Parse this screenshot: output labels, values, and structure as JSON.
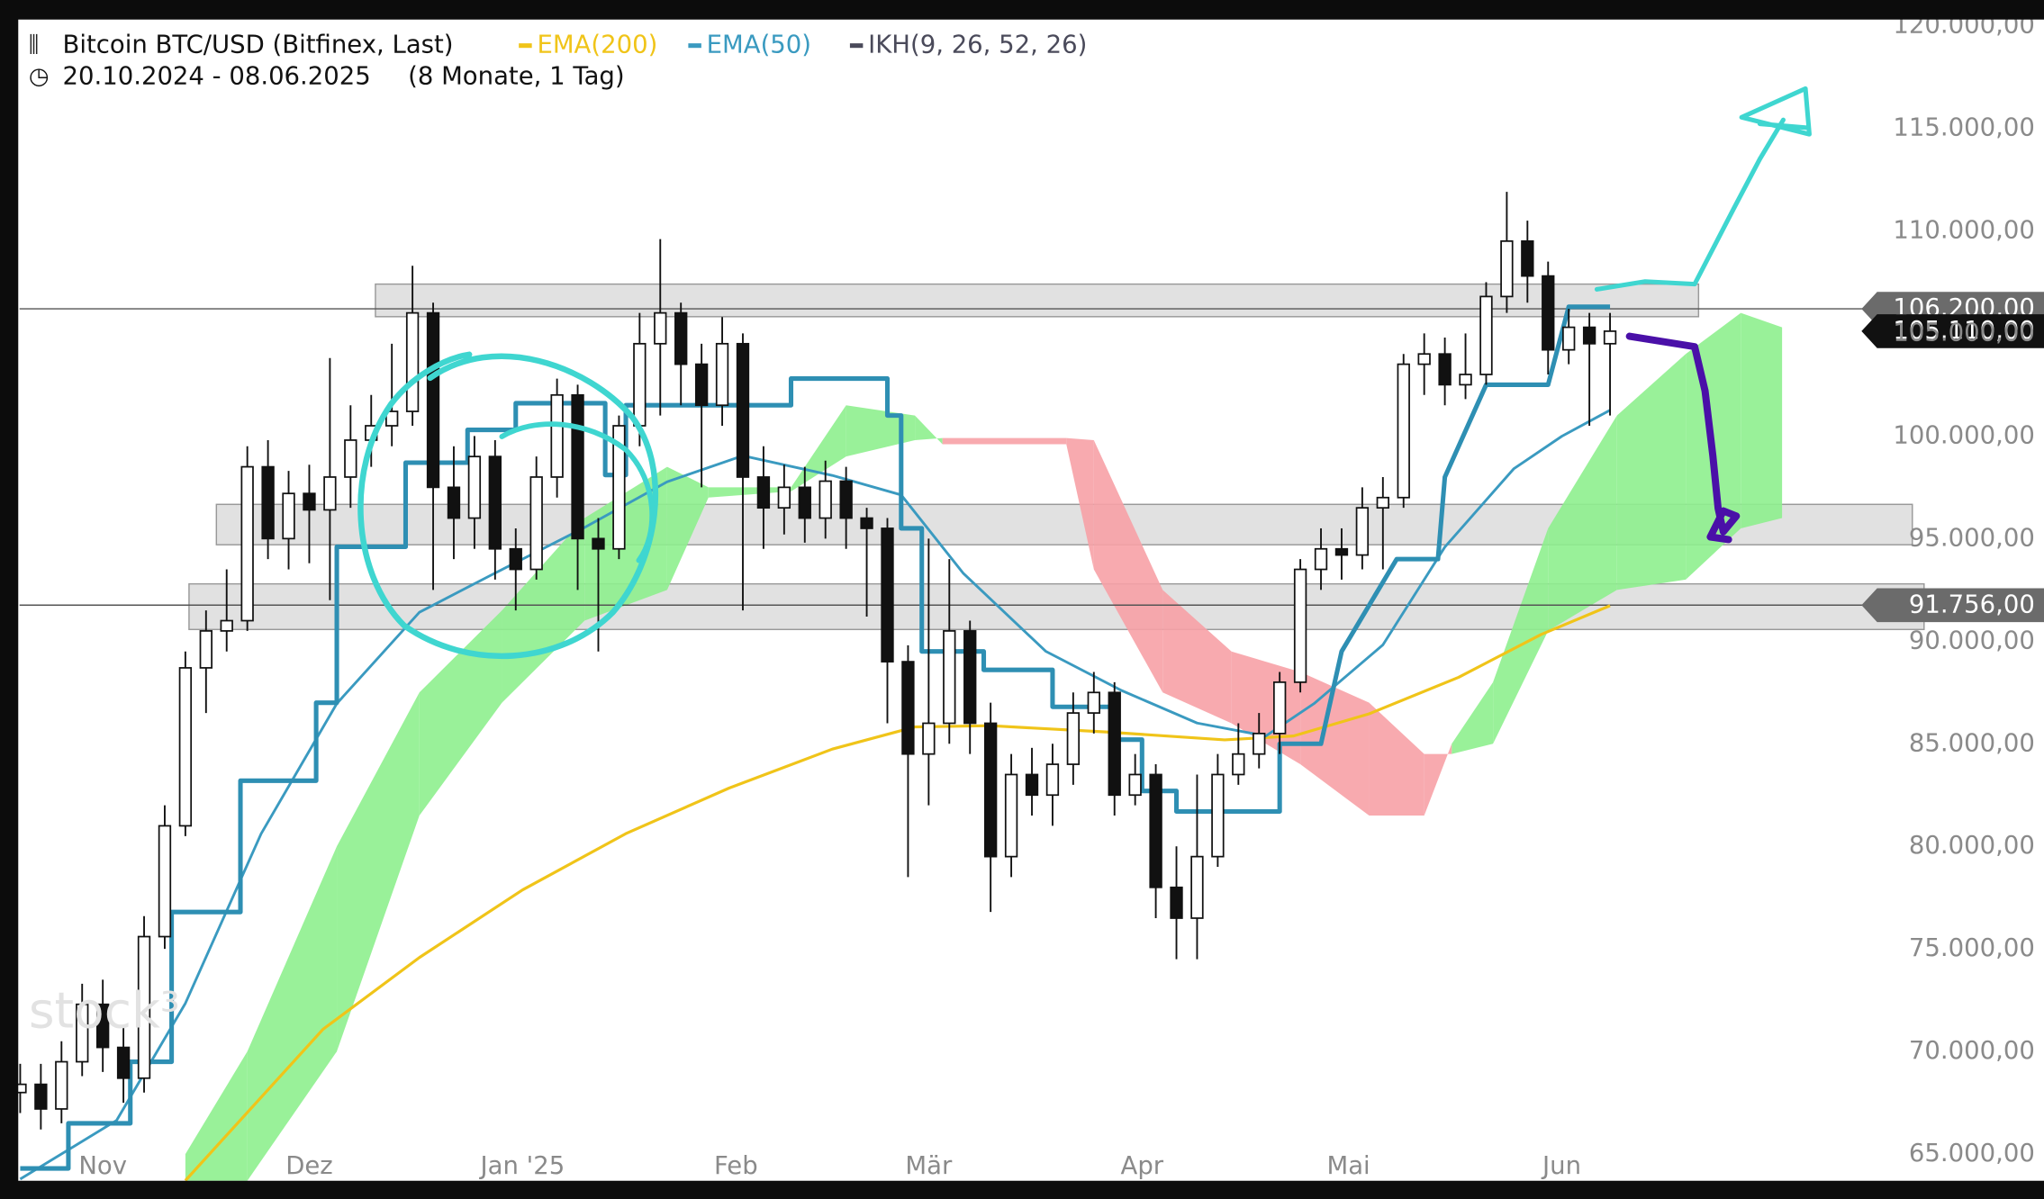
{
  "chart_data": {
    "type": "candlestick",
    "title": "Bitcoin BTC/USD (Bitfinex, Last)",
    "date_range": "20.10.2024 - 08.06.2025",
    "period": "(8 Monate, 1 Tag)",
    "watermark": "stock³",
    "xlim": [
      0,
      270
    ],
    "ylim": [
      63700,
      120300
    ],
    "xticks": [
      {
        "value": 12,
        "label": "Nov"
      },
      {
        "value": 42,
        "label": "Dez"
      },
      {
        "value": 73,
        "label": "Jan '25"
      },
      {
        "value": 104,
        "label": "Feb"
      },
      {
        "value": 132,
        "label": "Mär"
      },
      {
        "value": 163,
        "label": "Apr"
      },
      {
        "value": 193,
        "label": "Mai"
      },
      {
        "value": 224,
        "label": "Jun"
      }
    ],
    "yticks": [
      {
        "value": 65000,
        "label": "65.000,00"
      },
      {
        "value": 70000,
        "label": "70.000,00"
      },
      {
        "value": 75000,
        "label": "75.000,00"
      },
      {
        "value": 80000,
        "label": "80.000,00"
      },
      {
        "value": 85000,
        "label": "85.000,00"
      },
      {
        "value": 90000,
        "label": "90.000,00"
      },
      {
        "value": 95000,
        "label": "95.000,00"
      },
      {
        "value": 100000,
        "label": "100.000,00"
      },
      {
        "value": 105000,
        "label": "105.000,00"
      },
      {
        "value": 110000,
        "label": "110.000,00"
      },
      {
        "value": 115000,
        "label": "115.000,00"
      },
      {
        "value": 120000,
        "label": "120.000,00"
      }
    ],
    "price_levels": [
      {
        "value": 106200,
        "label": "106.200,00",
        "color": "#6b6b6b"
      },
      {
        "value": 91756,
        "label": "91.756,00",
        "color": "#6b6b6b"
      }
    ],
    "last_price": {
      "value": 105110,
      "label": "105.110,00",
      "color": "#111111"
    },
    "candles": {
      "up_color": "#ffffff",
      "down_color": "#111111",
      "x": [
        0,
        3,
        6,
        9,
        12,
        15,
        18,
        21,
        24,
        27,
        30,
        33,
        36,
        39,
        42,
        45,
        48,
        51,
        54,
        57,
        60,
        63,
        66,
        69,
        72,
        75,
        78,
        81,
        84,
        87,
        90,
        93,
        96,
        99,
        102,
        105,
        108,
        111,
        114,
        117,
        120,
        123,
        126,
        129,
        132,
        135,
        138,
        141,
        144,
        147,
        150,
        153,
        156,
        159,
        162,
        165,
        168,
        171,
        174,
        177,
        180,
        183,
        186,
        189,
        192,
        195,
        198,
        201,
        204,
        207,
        210,
        213,
        216,
        219,
        222,
        225,
        228,
        231
      ],
      "open": [
        68000,
        68400,
        67200,
        69500,
        72300,
        70200,
        68700,
        75600,
        81000,
        88700,
        90500,
        91000,
        98500,
        95000,
        97200,
        96400,
        98000,
        99800,
        100500,
        101200,
        106000,
        97500,
        96000,
        99000,
        94500,
        93500,
        98000,
        102000,
        95000,
        94500,
        100500,
        104500,
        106000,
        103500,
        101500,
        104500,
        98000,
        96500,
        97500,
        96000,
        97800,
        96000,
        95500,
        89000,
        84500,
        86000,
        90500,
        86000,
        79500,
        83500,
        82500,
        84000,
        86500,
        87500,
        82500,
        83500,
        78000,
        76500,
        79500,
        83500,
        84500,
        85500,
        88000,
        93500,
        94500,
        94200,
        96500,
        97000,
        103500,
        104000,
        102500,
        103000,
        106800,
        109500,
        107800,
        104200,
        105300,
        104500
      ],
      "high": [
        69400,
        69400,
        70500,
        73300,
        73500,
        71200,
        76600,
        82000,
        89500,
        91500,
        93500,
        99500,
        99800,
        98300,
        98600,
        103800,
        101500,
        102000,
        104500,
        108300,
        106500,
        99500,
        100000,
        99800,
        95500,
        99000,
        102800,
        102500,
        96000,
        101000,
        106000,
        109600,
        106500,
        104500,
        105800,
        105000,
        99500,
        98600,
        98500,
        98800,
        98500,
        96500,
        96000,
        89800,
        95000,
        94000,
        91000,
        87000,
        84500,
        84800,
        85000,
        87500,
        88500,
        88000,
        84500,
        84000,
        80000,
        83500,
        84500,
        86000,
        86500,
        88500,
        94000,
        95500,
        95500,
        97500,
        98000,
        104000,
        105000,
        104800,
        105000,
        107500,
        111900,
        110500,
        108500,
        106200,
        106000,
        106000
      ],
      "low": [
        67000,
        66200,
        66500,
        68800,
        69000,
        67500,
        68000,
        75000,
        80500,
        86500,
        89500,
        90500,
        94000,
        93500,
        93800,
        92000,
        96500,
        98500,
        99500,
        100500,
        92500,
        94000,
        94500,
        93000,
        91500,
        93000,
        97000,
        92500,
        89500,
        94000,
        99500,
        101000,
        101500,
        97500,
        100500,
        91500,
        94500,
        95200,
        94800,
        95000,
        94500,
        91200,
        86000,
        78500,
        82000,
        85000,
        84500,
        76800,
        78500,
        81500,
        81000,
        83000,
        85500,
        81500,
        82000,
        76500,
        74500,
        74500,
        79000,
        83000,
        83800,
        84500,
        87500,
        92500,
        93000,
        93500,
        93500,
        96500,
        102000,
        101500,
        101800,
        102500,
        106000,
        106500,
        103000,
        103500,
        100500,
        101000
      ],
      "close": [
        68400,
        67200,
        69500,
        72300,
        70200,
        68700,
        75600,
        81000,
        88700,
        90500,
        91000,
        98500,
        95000,
        97200,
        96400,
        98000,
        99800,
        100500,
        101200,
        106000,
        97500,
        96000,
        99000,
        94500,
        93500,
        98000,
        102000,
        95000,
        94500,
        100500,
        104500,
        106000,
        103500,
        101500,
        104500,
        98000,
        96500,
        97500,
        96000,
        97800,
        96000,
        95500,
        89000,
        84500,
        86000,
        90500,
        86000,
        79500,
        83500,
        82500,
        84000,
        86500,
        87500,
        82500,
        83500,
        78000,
        76500,
        79500,
        83500,
        84500,
        85500,
        88000,
        93500,
        94500,
        94200,
        96500,
        97000,
        103500,
        104000,
        102500,
        103000,
        106800,
        109500,
        107800,
        104200,
        105300,
        104500,
        105110
      ]
    },
    "series": [
      {
        "name": "EMA(200)",
        "color": "#f0c419",
        "x": [
          24,
          44,
          58,
          73,
          88,
          103,
          118,
          130,
          141,
          158,
          175,
          185,
          196,
          209,
          221,
          231
        ],
        "values": [
          63710,
          71085,
          74580,
          77880,
          80620,
          82840,
          84740,
          85820,
          85880,
          85570,
          85190,
          85380,
          86460,
          88240,
          90330,
          91730
        ]
      },
      {
        "name": "EMA(50)",
        "color": "#3a9ac0",
        "x": [
          0,
          14,
          24,
          35,
          46,
          58,
          69,
          82,
          94,
          105,
          118,
          128,
          137,
          149,
          160,
          171,
          181,
          188,
          198,
          207,
          217,
          224,
          231
        ],
        "values": [
          63780,
          66640,
          72350,
          80610,
          86960,
          91410,
          93320,
          95540,
          97770,
          99040,
          98080,
          97130,
          93320,
          89510,
          87600,
          86010,
          85380,
          86960,
          89820,
          94590,
          98400,
          99990,
          101260
        ]
      }
    ],
    "ikh": {
      "name": "IKH(9, 26, 52, 26)",
      "color": "#4a4a5a",
      "line_color": "#2e8fb3",
      "line": {
        "x": [
          0,
          7,
          7,
          16,
          16,
          22,
          22,
          32,
          32,
          43,
          43,
          46,
          46,
          56,
          56,
          65,
          65,
          72,
          72,
          85,
          85,
          88,
          88,
          112,
          112,
          126,
          126,
          128,
          128,
          131,
          131,
          140,
          140,
          150,
          150,
          159,
          159,
          163,
          163,
          168,
          168,
          183,
          183,
          189,
          192,
          200,
          206,
          207,
          213,
          222,
          225,
          231
        ],
        "values": [
          64300,
          64300,
          66500,
          66500,
          69500,
          69500,
          76800,
          76800,
          83200,
          83200,
          87000,
          87000,
          94600,
          94600,
          98700,
          98700,
          100300,
          100300,
          101600,
          101600,
          98100,
          98100,
          101500,
          101500,
          102800,
          102800,
          101000,
          101000,
          95500,
          95500,
          89500,
          89500,
          88600,
          88600,
          86800,
          86800,
          85200,
          85200,
          82700,
          82700,
          81700,
          81700,
          85000,
          85000,
          89500,
          94000,
          94000,
          98000,
          102500,
          102500,
          106300,
          106300
        ]
      },
      "cloud_colors": [
        "#8ef08e",
        "#f7a1a6"
      ],
      "cloud": {
        "x": [
          24,
          33,
          46,
          58,
          70,
          82,
          94,
          100,
          112,
          120,
          130,
          134,
          152,
          156,
          166,
          176,
          186,
          196,
          204,
          208,
          214,
          222,
          232,
          242,
          250,
          256
        ],
        "span_a": [
          65000,
          70000,
          80000,
          87500,
          91500,
          96000,
          98500,
          97500,
          97500,
          101500,
          101000,
          99600,
          99600,
          93500,
          87500,
          86000,
          84000,
          81500,
          81500,
          85000,
          88000,
          95500,
          101000,
          104000,
          106000,
          105300
        ],
        "span_b": [
          63700,
          63700,
          70000,
          81500,
          87000,
          91000,
          92500,
          97000,
          97300,
          99000,
          99800,
          99900,
          99900,
          99800,
          92500,
          89500,
          88500,
          87000,
          84500,
          84500,
          85000,
          90500,
          92500,
          93000,
          95500,
          96000
        ]
      }
    }
  }
}
